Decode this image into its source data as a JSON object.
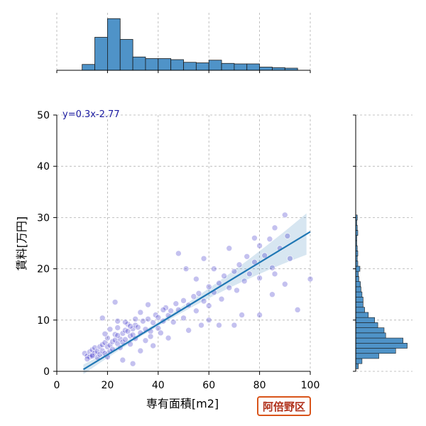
{
  "chart_data": {
    "type": "scatter",
    "xlabel": "専有面積[m2]",
    "ylabel": "賃料[万円]",
    "xlim": [
      0,
      100
    ],
    "ylim": [
      0,
      50
    ],
    "xticks": [
      0,
      20,
      40,
      60,
      80,
      100
    ],
    "yticks": [
      0,
      10,
      20,
      30,
      40,
      50
    ],
    "grid": true,
    "annotation": "y=0.3x-2.77",
    "regression": {
      "slope": 0.3,
      "intercept": -2.77,
      "x_range": [
        10.5,
        100
      ]
    },
    "scatter_color": "#2a1fc4",
    "line_color": "#1f77b4",
    "hist_color": "#4f93c8",
    "points": [
      [
        11,
        3.5
      ],
      [
        12,
        3
      ],
      [
        13,
        3.8
      ],
      [
        13,
        2.8
      ],
      [
        14,
        4.2
      ],
      [
        14,
        3.2
      ],
      [
        15,
        3.6
      ],
      [
        15,
        4.6
      ],
      [
        16,
        3.9
      ],
      [
        16,
        2.7
      ],
      [
        17,
        4.8
      ],
      [
        17,
        3.3
      ],
      [
        18,
        5.2
      ],
      [
        18,
        4.0
      ],
      [
        19,
        3.5
      ],
      [
        19,
        5.6
      ],
      [
        20,
        4.8
      ],
      [
        20,
        6.5
      ],
      [
        21,
        5.1
      ],
      [
        21,
        3.9
      ],
      [
        22,
        5.8
      ],
      [
        22,
        4.3
      ],
      [
        23,
        6.1
      ],
      [
        23,
        7.2
      ],
      [
        24,
        5.4
      ],
      [
        24,
        8.5
      ],
      [
        25,
        6.3
      ],
      [
        25,
        4.6
      ],
      [
        26,
        7.4
      ],
      [
        26,
        5.7
      ],
      [
        27,
        8.0
      ],
      [
        27,
        6.2
      ],
      [
        28,
        7.8
      ],
      [
        28,
        9.2
      ],
      [
        29,
        6.9
      ],
      [
        29,
        5.3
      ],
      [
        30,
        8.3
      ],
      [
        30,
        7.1
      ],
      [
        31,
        9.0
      ],
      [
        31,
        6.4
      ],
      [
        32,
        8.6
      ],
      [
        33,
        7.5
      ],
      [
        34,
        9.8
      ],
      [
        35,
        8.2
      ],
      [
        36,
        10.2
      ],
      [
        37,
        7.8
      ],
      [
        38,
        9.5
      ],
      [
        39,
        11.0
      ],
      [
        40,
        10.5
      ],
      [
        40,
        8.4
      ],
      [
        42,
        9.8
      ],
      [
        43,
        12.4
      ],
      [
        44,
        10.9
      ],
      [
        45,
        11.8
      ],
      [
        46,
        9.6
      ],
      [
        47,
        13.2
      ],
      [
        48,
        12.0
      ],
      [
        50,
        13.8
      ],
      [
        50,
        10.4
      ],
      [
        52,
        12.9
      ],
      [
        54,
        14.6
      ],
      [
        55,
        11.8
      ],
      [
        56,
        15.2
      ],
      [
        58,
        13.7
      ],
      [
        60,
        16.5
      ],
      [
        60,
        12.8
      ],
      [
        62,
        15.4
      ],
      [
        64,
        17.2
      ],
      [
        65,
        14.1
      ],
      [
        66,
        18.6
      ],
      [
        68,
        16.3
      ],
      [
        70,
        19.5
      ],
      [
        71,
        15.8
      ],
      [
        72,
        20.8
      ],
      [
        74,
        17.6
      ],
      [
        75,
        22.4
      ],
      [
        76,
        19.0
      ],
      [
        78,
        21.3
      ],
      [
        80,
        24.5
      ],
      [
        80,
        18.2
      ],
      [
        82,
        22.6
      ],
      [
        84,
        25.8
      ],
      [
        85,
        20.2
      ],
      [
        86,
        28.0
      ],
      [
        88,
        24.0
      ],
      [
        90,
        30.5
      ],
      [
        91,
        26.4
      ],
      [
        92,
        22.0
      ],
      [
        95,
        12.0
      ],
      [
        100,
        18.0
      ],
      [
        18,
        10.4
      ],
      [
        23,
        13.5
      ],
      [
        24,
        9.8
      ],
      [
        36,
        13.0
      ],
      [
        42,
        12.0
      ],
      [
        48,
        23.0
      ],
      [
        51,
        20.0
      ],
      [
        55,
        18.0
      ],
      [
        58,
        22.0
      ],
      [
        60,
        10.0
      ],
      [
        62,
        20.0
      ],
      [
        64,
        9.0
      ],
      [
        68,
        24.0
      ],
      [
        70,
        9.0
      ],
      [
        73,
        11.0
      ],
      [
        78,
        26.0
      ],
      [
        80,
        11.0
      ],
      [
        85,
        15.0
      ],
      [
        86,
        19.0
      ],
      [
        90,
        17.0
      ],
      [
        30,
        1.5
      ],
      [
        26,
        2.2
      ],
      [
        20,
        2.8
      ],
      [
        14,
        3.0
      ],
      [
        12,
        2.4
      ],
      [
        33,
        4.0
      ],
      [
        38,
        5.0
      ],
      [
        44,
        6.5
      ],
      [
        52,
        8.0
      ],
      [
        57,
        9.0
      ],
      [
        19,
        7.3
      ],
      [
        21,
        8.2
      ],
      [
        24,
        7.0
      ],
      [
        27,
        9.6
      ],
      [
        29,
        8.8
      ],
      [
        31,
        10.2
      ],
      [
        33,
        11.5
      ],
      [
        35,
        6.0
      ],
      [
        37,
        6.8
      ],
      [
        41,
        7.5
      ]
    ],
    "top_hist": {
      "bins": [
        [
          10,
          15
        ],
        [
          15,
          20
        ],
        [
          20,
          25
        ],
        [
          25,
          30
        ],
        [
          30,
          35
        ],
        [
          35,
          40
        ],
        [
          40,
          45
        ],
        [
          45,
          50
        ],
        [
          50,
          55
        ],
        [
          55,
          60
        ],
        [
          60,
          65
        ],
        [
          65,
          70
        ],
        [
          70,
          75
        ],
        [
          75,
          80
        ],
        [
          80,
          85
        ],
        [
          85,
          90
        ],
        [
          90,
          95
        ]
      ],
      "heights": [
        0.11,
        0.62,
        0.97,
        0.58,
        0.25,
        0.22,
        0.22,
        0.2,
        0.15,
        0.14,
        0.19,
        0.13,
        0.12,
        0.12,
        0.06,
        0.05,
        0.04
      ]
    },
    "right_hist": {
      "bins": [
        [
          0.5,
          1.5
        ],
        [
          1.5,
          2.5
        ],
        [
          2.5,
          3.5
        ],
        [
          3.5,
          4.5
        ],
        [
          4.5,
          5.5
        ],
        [
          5.5,
          6.5
        ],
        [
          6.5,
          7.5
        ],
        [
          7.5,
          8.5
        ],
        [
          8.5,
          9.5
        ],
        [
          9.5,
          10.5
        ],
        [
          10.5,
          11.5
        ],
        [
          11.5,
          12.5
        ],
        [
          12.5,
          13.5
        ],
        [
          13.5,
          14.5
        ],
        [
          14.5,
          15.5
        ],
        [
          15.5,
          16.5
        ],
        [
          16.5,
          17.5
        ],
        [
          17.5,
          18.5
        ],
        [
          18.5,
          19.5
        ],
        [
          19.5,
          20.5
        ],
        [
          20.5,
          21.5
        ],
        [
          21.5,
          22.5
        ],
        [
          22.5,
          23.5
        ],
        [
          23.5,
          24.5
        ],
        [
          24.5,
          25.5
        ],
        [
          25.5,
          26.5
        ],
        [
          26.5,
          27.5
        ],
        [
          27.5,
          28.5
        ],
        [
          28.5,
          29.5
        ],
        [
          29.5,
          30.5
        ]
      ],
      "heights": [
        0.05,
        0.12,
        0.44,
        0.76,
        0.98,
        0.9,
        0.57,
        0.54,
        0.42,
        0.36,
        0.24,
        0.17,
        0.14,
        0.14,
        0.12,
        0.1,
        0.09,
        0.06,
        0.05,
        0.08,
        0.04,
        0.03,
        0.04,
        0.03,
        0.02,
        0.02,
        0.04,
        0.03,
        0.02,
        0.03
      ]
    }
  },
  "badge": {
    "label": "阿倍野区"
  }
}
